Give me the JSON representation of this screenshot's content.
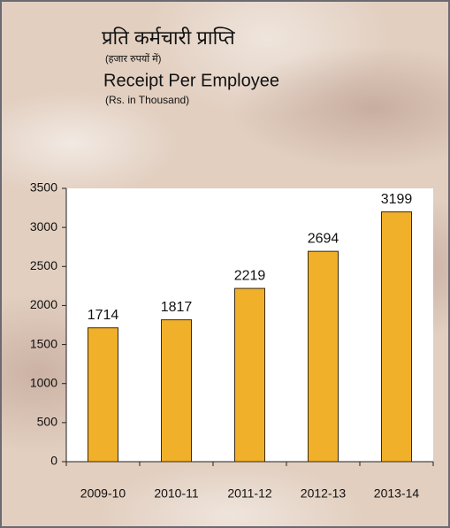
{
  "chart_data": {
    "type": "bar",
    "title_hindi": "प्रति कर्मचारी प्राप्ति",
    "subtitle_hindi": "(हजार रुपयों में)",
    "title": "Receipt Per Employee",
    "subtitle": "(Rs. in Thousand)",
    "categories": [
      "2009-10",
      "2010-11",
      "2011-12",
      "2012-13",
      "2013-14"
    ],
    "values": [
      1714,
      1817,
      2219,
      2694,
      3199
    ],
    "color": "#f0b02a",
    "ylim": [
      0,
      3500
    ],
    "yticks": [
      0,
      500,
      1000,
      1500,
      2000,
      2500,
      3000,
      3500
    ],
    "grid": false
  }
}
